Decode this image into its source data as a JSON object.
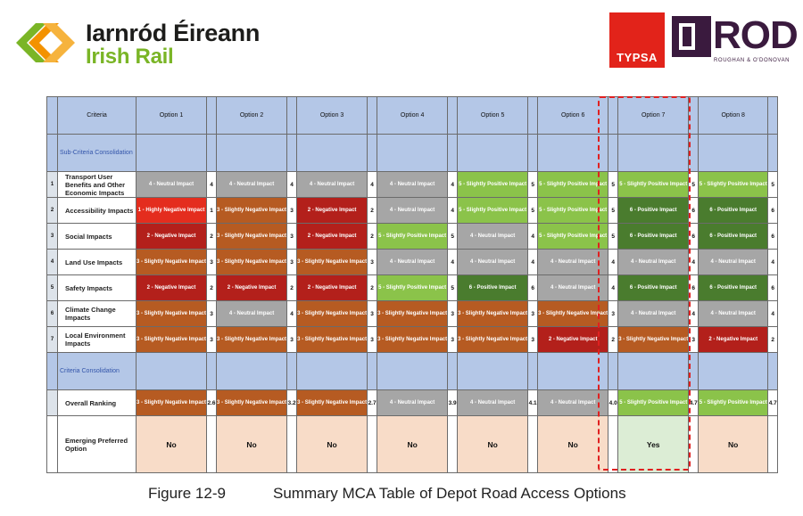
{
  "logos": {
    "irish_rail_line1": "Iarnród Éireann",
    "irish_rail_line2": "Irish Rail",
    "typsa": "TYPSA",
    "rod": "ROD",
    "rod_sub": "ROUGHAN & O'DONOVAN"
  },
  "table": {
    "header": {
      "criteria": "Criteria",
      "options": [
        "Option 1",
        "Option 2",
        "Option 3",
        "Option 4",
        "Option 5",
        "Option 6",
        "Option 7",
        "Option 8"
      ]
    },
    "sub_criteria_label": "Sub-Criteria Consolidation",
    "criteria_label": "Criteria Consolidation",
    "rows": [
      {
        "num": "1",
        "name": "Transport User Benefits and Other Economic Impacts",
        "cells": [
          {
            "label": "4 - Neutral Impact",
            "value": "4",
            "score": 4
          },
          {
            "label": "4 - Neutral Impact",
            "value": "4",
            "score": 4
          },
          {
            "label": "4 - Neutral Impact",
            "value": "4",
            "score": 4
          },
          {
            "label": "4 - Neutral Impact",
            "value": "4",
            "score": 4
          },
          {
            "label": "5 - Slightly Positive Impact",
            "value": "5",
            "score": 5
          },
          {
            "label": "5 - Slightly Positive Impact",
            "value": "5",
            "score": 5
          },
          {
            "label": "5 - Slightly Positive Impact",
            "value": "5",
            "score": 5
          },
          {
            "label": "5 - Slightly Positive Impact",
            "value": "5",
            "score": 5
          }
        ]
      },
      {
        "num": "2",
        "name": "Accessibility Impacts",
        "cells": [
          {
            "label": "1 - Highly Negative Impact",
            "value": "1",
            "score": 1
          },
          {
            "label": "3 - Slightly Negative Impact",
            "value": "3",
            "score": 3
          },
          {
            "label": "2 - Negative Impact",
            "value": "2",
            "score": 2
          },
          {
            "label": "4 - Neutral Impact",
            "value": "4",
            "score": 4
          },
          {
            "label": "5 - Slightly Positive Impact",
            "value": "5",
            "score": 5
          },
          {
            "label": "5 - Slightly Positive Impact",
            "value": "5",
            "score": 5
          },
          {
            "label": "6 - Positive Impact",
            "value": "6",
            "score": 6
          },
          {
            "label": "6 - Positive Impact",
            "value": "6",
            "score": 6
          }
        ]
      },
      {
        "num": "3",
        "name": "Social Impacts",
        "cells": [
          {
            "label": "2 - Negative Impact",
            "value": "2",
            "score": 2
          },
          {
            "label": "3 - Slightly Negative Impact",
            "value": "3",
            "score": 3
          },
          {
            "label": "2 - Negative Impact",
            "value": "2",
            "score": 2
          },
          {
            "label": "5 - Slightly Positive Impact",
            "value": "5",
            "score": 5
          },
          {
            "label": "4 - Neutral Impact",
            "value": "4",
            "score": 4
          },
          {
            "label": "5 - Slightly Positive Impact",
            "value": "5",
            "score": 5
          },
          {
            "label": "6 - Positive Impact",
            "value": "6",
            "score": 6
          },
          {
            "label": "6 - Positive Impact",
            "value": "6",
            "score": 6
          }
        ]
      },
      {
        "num": "4",
        "name": "Land Use Impacts",
        "cells": [
          {
            "label": "3 - Slightly Negative Impact",
            "value": "3",
            "score": 3
          },
          {
            "label": "3 - Slightly Negative Impact",
            "value": "3",
            "score": 3
          },
          {
            "label": "3 - Slightly Negative Impact",
            "value": "3",
            "score": 3
          },
          {
            "label": "4 - Neutral Impact",
            "value": "4",
            "score": 4
          },
          {
            "label": "4 - Neutral Impact",
            "value": "4",
            "score": 4
          },
          {
            "label": "4 - Neutral Impact",
            "value": "4",
            "score": 4
          },
          {
            "label": "4 - Neutral Impact",
            "value": "4",
            "score": 4
          },
          {
            "label": "4 - Neutral Impact",
            "value": "4",
            "score": 4
          }
        ]
      },
      {
        "num": "5",
        "name": "Safety Impacts",
        "cells": [
          {
            "label": "2 - Negative Impact",
            "value": "2",
            "score": 2
          },
          {
            "label": "2 - Negative Impact",
            "value": "2",
            "score": 2
          },
          {
            "label": "2 - Negative Impact",
            "value": "2",
            "score": 2
          },
          {
            "label": "5 - Slightly Positive Impact",
            "value": "5",
            "score": 5
          },
          {
            "label": "6 - Positive Impact",
            "value": "6",
            "score": 6
          },
          {
            "label": "4 - Neutral Impact",
            "value": "4",
            "score": 4
          },
          {
            "label": "6 - Positive Impact",
            "value": "6",
            "score": 6
          },
          {
            "label": "6 - Positive Impact",
            "value": "6",
            "score": 6
          }
        ]
      },
      {
        "num": "6",
        "name": "Climate Change Impacts",
        "cells": [
          {
            "label": "3 - Slightly Negative Impact",
            "value": "3",
            "score": 3
          },
          {
            "label": "4 - Neutral Impact",
            "value": "4",
            "score": 4
          },
          {
            "label": "3 - Slightly Negative Impact",
            "value": "3",
            "score": 3
          },
          {
            "label": "3 - Slightly Negative Impact",
            "value": "3",
            "score": 3
          },
          {
            "label": "3 - Slightly Negative Impact",
            "value": "3",
            "score": 3
          },
          {
            "label": "3 - Slightly Negative Impact",
            "value": "3",
            "score": 3
          },
          {
            "label": "4 - Neutral Impact",
            "value": "4",
            "score": 4
          },
          {
            "label": "4 - Neutral Impact",
            "value": "4",
            "score": 4
          }
        ]
      },
      {
        "num": "7",
        "name": "Local Environment Impacts",
        "cells": [
          {
            "label": "3 - Slightly Negative Impact",
            "value": "3",
            "score": 3
          },
          {
            "label": "3 - Slightly Negative Impact",
            "value": "3",
            "score": 3
          },
          {
            "label": "3 - Slightly Negative Impact",
            "value": "3",
            "score": 3
          },
          {
            "label": "3 - Slightly Negative Impact",
            "value": "3",
            "score": 3
          },
          {
            "label": "3 - Slightly Negative Impact",
            "value": "3",
            "score": 3
          },
          {
            "label": "2 - Negative Impact",
            "value": "2",
            "score": 2
          },
          {
            "label": "3 - Slightly Negative Impact",
            "value": "3",
            "score": 3
          },
          {
            "label": "2 - Negative Impact",
            "value": "2",
            "score": 2
          }
        ]
      }
    ],
    "ranking": {
      "name": "Overall Ranking",
      "cells": [
        {
          "label": "3 - Slightly Negative Impact",
          "value": "2.6",
          "score": 3
        },
        {
          "label": "3 - Slightly Negative Impact",
          "value": "3.2",
          "score": 3
        },
        {
          "label": "3 - Slightly Negative Impact",
          "value": "2.7",
          "score": 3
        },
        {
          "label": "4 - Neutral Impact",
          "value": "3.9",
          "score": 4
        },
        {
          "label": "4 - Neutral Impact",
          "value": "4.1",
          "score": 4
        },
        {
          "label": "4 - Neutral Impact",
          "value": "4.0",
          "score": 4
        },
        {
          "label": "5 - Slightly Positive Impact",
          "value": "4.7",
          "score": 5
        },
        {
          "label": "5 - Slightly Positive Impact",
          "value": "4.7",
          "score": 5
        }
      ]
    },
    "preferred": {
      "name": "Emerging Preferred Option",
      "values": [
        "No",
        "No",
        "No",
        "No",
        "No",
        "No",
        "Yes",
        "No"
      ]
    },
    "colors": {
      "1": "#e42d1e",
      "2": "#b3201b",
      "3": "#b65b22",
      "4": "#a6a6a6",
      "5": "#8bc34a",
      "6": "#4a7c2e",
      "header": "#b4c7e7",
      "preferred": "#f8dcc8",
      "preferred_yes": "#dcedd5",
      "highlight": "#e02020"
    }
  },
  "caption": {
    "figure": "Figure 12-9",
    "title": "Summary MCA Table of Depot Road Access Options"
  }
}
